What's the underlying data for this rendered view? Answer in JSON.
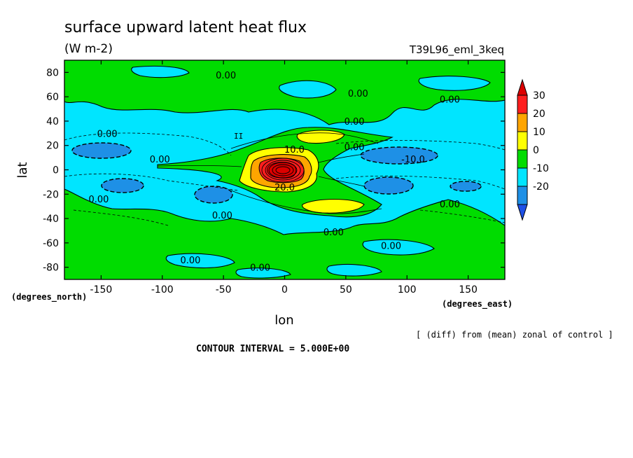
{
  "chart_data": {
    "type": "contour-map",
    "title": "surface upward latent heat flux",
    "units": "(W m-2)",
    "experiment": "T39L96_eml_3keq",
    "xlabel": "lon",
    "ylabel": "lat",
    "x_units": "(degrees_east)",
    "y_units": "(degrees_north)",
    "xlim": [
      -180,
      180
    ],
    "ylim": [
      -90,
      90
    ],
    "x_ticks": [
      -150,
      -100,
      -50,
      0,
      50,
      100,
      150
    ],
    "x_tick_labels": [
      "-150",
      "-100",
      "-50",
      "0",
      "50",
      "100",
      "150"
    ],
    "y_ticks": [
      80,
      60,
      40,
      20,
      0,
      -20,
      -40,
      -60,
      -80
    ],
    "y_tick_labels": [
      "80",
      "60",
      "40",
      "20",
      "0",
      "-20",
      "-40",
      "-60",
      "-80"
    ],
    "contour_interval_text": "CONTOUR INTERVAL = 5.000E+00",
    "note": "[ (diff) from (mean) zonal of control ]",
    "colorbar": {
      "levels": [
        -20,
        -10,
        0,
        10,
        20,
        30
      ],
      "labels": [
        "30",
        "20",
        "10",
        "0",
        "-10",
        "-20"
      ],
      "colors": [
        "#1e90e6",
        "#00e5ff",
        "#00dc00",
        "#ffff00",
        "#ffa500",
        "#ff1e1e"
      ],
      "under_color": "#1e50e6",
      "over_color": "#dc0000"
    },
    "contour_labels": [
      {
        "text": "0.00",
        "lon": -48,
        "lat": 78
      },
      {
        "text": "0.00",
        "lon": 60,
        "lat": 63
      },
      {
        "text": "0.00",
        "lon": 135,
        "lat": 58
      },
      {
        "text": "0.00",
        "lon": 57,
        "lat": 40
      },
      {
        "text": "0.00",
        "lon": -145,
        "lat": 30
      },
      {
        "text": "0.00",
        "lon": 57,
        "lat": 19
      },
      {
        "text": "0.00",
        "lon": -102,
        "lat": 9
      },
      {
        "text": "10.0",
        "lon": 8,
        "lat": 17
      },
      {
        "text": "-10.0",
        "lon": 105,
        "lat": 9
      },
      {
        "text": "20.0",
        "lon": 0,
        "lat": -14
      },
      {
        "text": "0.00",
        "lon": -152,
        "lat": -24
      },
      {
        "text": "0.00",
        "lon": 135,
        "lat": -28
      },
      {
        "text": "0.00",
        "lon": -51,
        "lat": -37
      },
      {
        "text": "0.00",
        "lon": 40,
        "lat": -51
      },
      {
        "text": "0.00",
        "lon": 87,
        "lat": -62
      },
      {
        "text": "0.00",
        "lon": -77,
        "lat": -74
      },
      {
        "text": "0.00",
        "lon": -20,
        "lat": -80
      }
    ]
  }
}
